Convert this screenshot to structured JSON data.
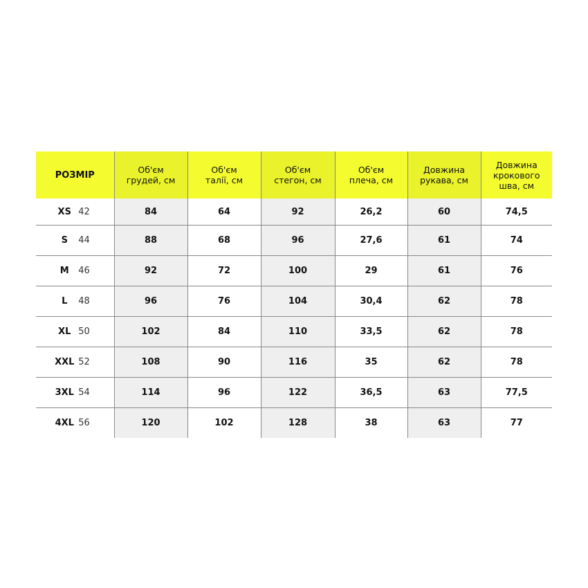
{
  "headers": [
    "РОЗМІР",
    "Об'єм\nгрудей, см",
    "Об'єм\nталії, см",
    "Об'єм\nстегон, см",
    "Об'єм\nплеча, см",
    "Довжина\nрукава, см",
    "Довжина\nкрокового\nшва, см"
  ],
  "rows": [
    {
      "size": "XS",
      "num": "42",
      "values": [
        "84",
        "64",
        "92",
        "26,2",
        "60",
        "74,5"
      ]
    },
    {
      "size": "S",
      "num": "44",
      "values": [
        "88",
        "68",
        "96",
        "27,6",
        "61",
        "74"
      ]
    },
    {
      "size": "M",
      "num": "46",
      "values": [
        "92",
        "72",
        "100",
        "29",
        "61",
        "76"
      ]
    },
    {
      "size": "L",
      "num": "48",
      "values": [
        "96",
        "76",
        "104",
        "30,4",
        "62",
        "78"
      ]
    },
    {
      "size": "XL",
      "num": "50",
      "values": [
        "102",
        "84",
        "110",
        "33,5",
        "62",
        "78"
      ]
    },
    {
      "size": "XXL",
      "num": "52",
      "values": [
        "108",
        "90",
        "116",
        "35",
        "62",
        "78"
      ]
    },
    {
      "size": "3XL",
      "num": "54",
      "values": [
        "114",
        "96",
        "122",
        "36,5",
        "63",
        "77,5"
      ]
    },
    {
      "size": "4XL",
      "num": "56",
      "values": [
        "120",
        "102",
        "128",
        "38",
        "63",
        "77"
      ]
    }
  ],
  "colors": {
    "header": "#f4fb2e",
    "header_shade": "#e9f22a",
    "cell_shade": "#efefef"
  }
}
